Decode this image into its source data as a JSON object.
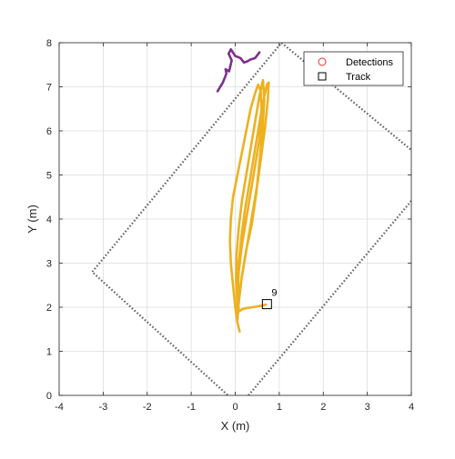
{
  "chart_data": {
    "type": "line",
    "title": "",
    "xlabel": "X (m)",
    "ylabel": "Y (m)",
    "xlim": [
      -4,
      4
    ],
    "ylim": [
      0,
      8
    ],
    "x_ticks": [
      -4,
      -3,
      -2,
      -1,
      0,
      1,
      2,
      3,
      4
    ],
    "y_ticks": [
      0,
      1,
      2,
      3,
      4,
      5,
      6,
      7,
      8
    ],
    "grid": true,
    "legend": {
      "placement": "top-right",
      "entries": [
        {
          "label": "Detections",
          "marker": "circle",
          "color": "#e8302a"
        },
        {
          "label": "Track",
          "marker": "square",
          "color": "#000000"
        }
      ]
    },
    "region": {
      "style": "dotted",
      "color": "#666666",
      "polygon": [
        [
          0.0,
          -0.15
        ],
        [
          -3.25,
          2.8
        ],
        [
          1.05,
          8.0
        ],
        [
          4.2,
          5.4
        ]
      ],
      "inner_edge": [
        [
          0.3,
          0.0
        ],
        [
          4.2,
          4.65
        ]
      ]
    },
    "track_marker": {
      "x": 0.72,
      "y": 2.07,
      "label": "9"
    },
    "series": [
      {
        "color": "#edb120",
        "x": [
          0.1,
          0.05,
          0.0,
          -0.05,
          -0.1,
          -0.12,
          -0.1,
          -0.05,
          0.05,
          0.15,
          0.25,
          0.35,
          0.45,
          0.52,
          0.58,
          0.6,
          0.55,
          0.45,
          0.35,
          0.25,
          0.15,
          0.08,
          0.05,
          0.05,
          0.08,
          0.15,
          0.25,
          0.38,
          0.48,
          0.55,
          0.62,
          0.66,
          0.63,
          0.55,
          0.45,
          0.35,
          0.25,
          0.15,
          0.08,
          0.03,
          0.02,
          0.05,
          0.12,
          0.22,
          0.32,
          0.42,
          0.52,
          0.6,
          0.68,
          0.74,
          0.76,
          0.72,
          0.62,
          0.52,
          0.42,
          0.32,
          0.22,
          0.14,
          0.08,
          0.06,
          0.08,
          0.15,
          0.25,
          0.4,
          0.52,
          0.62,
          0.7
        ],
        "y": [
          1.45,
          1.65,
          2.0,
          2.5,
          3.0,
          3.5,
          4.0,
          4.5,
          5.0,
          5.5,
          6.0,
          6.5,
          6.85,
          7.05,
          6.9,
          6.4,
          5.8,
          5.2,
          4.6,
          4.0,
          3.4,
          2.8,
          2.2,
          1.7,
          2.1,
          2.7,
          3.3,
          3.9,
          4.6,
          5.3,
          6.0,
          6.7,
          7.15,
          6.8,
          6.2,
          5.6,
          5.0,
          4.4,
          3.8,
          3.2,
          2.6,
          2.0,
          2.5,
          3.1,
          3.7,
          4.3,
          4.9,
          5.5,
          6.1,
          6.7,
          7.1,
          7.05,
          6.6,
          6.0,
          5.4,
          4.8,
          4.2,
          3.6,
          3.0,
          2.4,
          1.9,
          1.95,
          1.98,
          2.0,
          2.02,
          2.04,
          2.06
        ]
      },
      {
        "color": "#7e2f8e",
        "x": [
          -0.4,
          -0.28,
          -0.2,
          -0.22,
          -0.14,
          -0.08,
          -0.15,
          -0.1,
          0.0,
          0.12,
          0.2,
          0.28,
          0.35,
          0.45,
          0.55
        ],
        "y": [
          6.9,
          7.1,
          7.3,
          7.4,
          7.35,
          7.6,
          7.75,
          7.85,
          7.7,
          7.65,
          7.55,
          7.58,
          7.62,
          7.65,
          7.78
        ]
      }
    ]
  }
}
